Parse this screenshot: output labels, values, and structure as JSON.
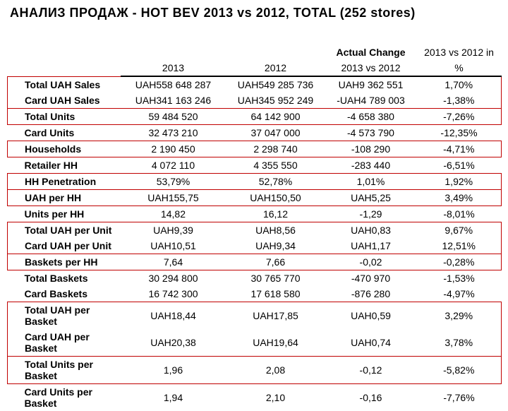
{
  "title": "АНАЛИЗ ПРОДАЖ - HOT BEV 2013 vs 2012, TOTAL (252 stores)",
  "header": {
    "col1_top": "",
    "col1_bot": "2013",
    "col2_top": "",
    "col2_bot": "2012",
    "col3_top": "Actual Change",
    "col3_bot": "2013 vs 2012",
    "col4_top": "2013 vs 2012 in",
    "col4_bot": "%"
  },
  "rows": [
    {
      "label": "Total UAH Sales",
      "y2013": "UAH558 648 287",
      "y2012": "UAH549 285 736",
      "change": "UAH9 362 551",
      "pct": "1,70%",
      "style": "red-open"
    },
    {
      "label": "Card UAH Sales",
      "y2013": "UAH341 163 246",
      "y2012": "UAH345 952 249",
      "change": "-UAH4 789 003",
      "pct": "-1,38%",
      "style": "red-close"
    },
    {
      "label": "Total Units",
      "y2013": "59 484 520",
      "y2012": "64 142 900",
      "change": "-4 658 380",
      "pct": "-7,26%",
      "style": "red-box"
    },
    {
      "label": "Card Units",
      "y2013": "32 473 210",
      "y2012": "37 047 000",
      "change": "-4 573 790",
      "pct": "-12,35%",
      "style": ""
    },
    {
      "label": "Households",
      "y2013": "2 190 450",
      "y2012": "2 298 740",
      "change": "-108 290",
      "pct": "-4,71%",
      "style": "red-box"
    },
    {
      "label": "Retailer HH",
      "y2013": "4 072 110",
      "y2012": "4 355 550",
      "change": "-283 440",
      "pct": "-6,51%",
      "style": ""
    },
    {
      "label": "HH Penetration",
      "y2013": "53,79%",
      "y2012": "52,78%",
      "change": "1,01%",
      "pct": "1,92%",
      "style": "red-box"
    },
    {
      "label": "UAH per HH",
      "y2013": "UAH155,75",
      "y2012": "UAH150,50",
      "change": "UAH5,25",
      "pct": "3,49%",
      "style": "red-box"
    },
    {
      "label": "Units per HH",
      "y2013": "14,82",
      "y2012": "16,12",
      "change": "-1,29",
      "pct": "-8,01%",
      "style": ""
    },
    {
      "label": "Total UAH per Unit",
      "y2013": "UAH9,39",
      "y2012": "UAH8,56",
      "change": "UAH0,83",
      "pct": "9,67%",
      "style": "red-open"
    },
    {
      "label": "Card UAH per Unit",
      "y2013": "UAH10,51",
      "y2012": "UAH9,34",
      "change": "UAH1,17",
      "pct": "12,51%",
      "style": "red-close"
    },
    {
      "label": "Baskets per HH",
      "y2013": "7,64",
      "y2012": "7,66",
      "change": "-0,02",
      "pct": "-0,28%",
      "style": "red-box"
    },
    {
      "label": "Total Baskets",
      "y2013": "30 294 800",
      "y2012": "30 765 770",
      "change": "-470 970",
      "pct": "-1,53%",
      "style": ""
    },
    {
      "label": "Card Baskets",
      "y2013": "16 742 300",
      "y2012": "17 618 580",
      "change": "-876 280",
      "pct": "-4,97%",
      "style": ""
    },
    {
      "label": "Total UAH per Basket",
      "y2013": "UAH18,44",
      "y2012": "UAH17,85",
      "change": "UAH0,59",
      "pct": "3,29%",
      "style": "red-open"
    },
    {
      "label": "Card UAH per Basket",
      "y2013": "UAH20,38",
      "y2012": "UAH19,64",
      "change": "UAH0,74",
      "pct": "3,78%",
      "style": "red-close"
    },
    {
      "label": "Total Units per Basket",
      "y2013": "1,96",
      "y2012": "2,08",
      "change": "-0,12",
      "pct": "-5,82%",
      "style": "red-box"
    },
    {
      "label": "Card Units per Basket",
      "y2013": "1,94",
      "y2012": "2,10",
      "change": "-0,16",
      "pct": "-7,76%",
      "style": ""
    }
  ],
  "columns": [
    "label",
    "y2013",
    "y2012",
    "change",
    "pct"
  ]
}
